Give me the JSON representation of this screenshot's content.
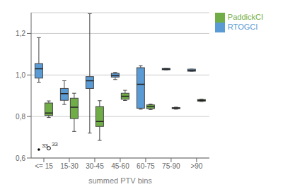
{
  "chart_data": {
    "type": "box",
    "xlabel": "summed PTV bins",
    "categories": [
      "<= 15",
      "15-30",
      "30-45",
      "45-60",
      "60-75",
      "75-90",
      ">90"
    ],
    "ylim": [
      0.6,
      1.3
    ],
    "yticks": [
      {
        "value": 0.6,
        "label": "0,6"
      },
      {
        "value": 0.8,
        "label": "0,8"
      },
      {
        "value": 1.0,
        "label": "1,0"
      },
      {
        "value": 1.2,
        "label": "1,2"
      }
    ],
    "grid": true,
    "legend": "right",
    "series": [
      {
        "name": "RTOGCI",
        "color": "#5b9bd5",
        "marker": "point",
        "boxes": [
          {
            "q1": 0.985,
            "median": 1.03,
            "q3": 1.055,
            "whislo": 0.965,
            "whishi": 1.18
          },
          {
            "q1": 0.878,
            "median": 0.91,
            "q3": 0.935,
            "whislo": 0.858,
            "whishi": 0.972
          },
          {
            "q1": 0.935,
            "median": 0.972,
            "q3": 0.992,
            "whislo": 0.72,
            "whishi": 1.295
          },
          {
            "q1": 0.99,
            "median": 0.998,
            "q3": 1.008,
            "whislo": 0.978,
            "whishi": 1.012
          },
          {
            "q1": 0.84,
            "median": 0.955,
            "q3": 1.035,
            "whislo": 0.835,
            "whishi": 1.045
          },
          {
            "q1": 1.025,
            "median": 1.028,
            "q3": 1.032,
            "whislo": 1.025,
            "whishi": 1.032
          },
          {
            "q1": 1.018,
            "median": 1.022,
            "q3": 1.028,
            "whislo": 1.018,
            "whishi": 1.028
          }
        ],
        "outliers": [
          {
            "category": "<= 15",
            "value": 0.641,
            "label": "33"
          }
        ]
      },
      {
        "name": "PaddickCI",
        "color": "#70ad47",
        "marker": "circle",
        "boxes": [
          {
            "q1": 0.805,
            "median": 0.817,
            "q3": 0.865,
            "whislo": 0.795,
            "whishi": 0.875
          },
          {
            "q1": 0.79,
            "median": 0.845,
            "q3": 0.888,
            "whislo": 0.728,
            "whishi": 0.912
          },
          {
            "q1": 0.752,
            "median": 0.776,
            "q3": 0.848,
            "whislo": 0.685,
            "whishi": 0.876
          },
          {
            "q1": 0.883,
            "median": 0.897,
            "q3": 0.912,
            "whislo": 0.877,
            "whishi": 0.926
          },
          {
            "q1": 0.838,
            "median": 0.847,
            "q3": 0.856,
            "whislo": 0.833,
            "whishi": 0.86
          },
          {
            "q1": 0.838,
            "median": 0.84,
            "q3": 0.843,
            "whislo": 0.835,
            "whishi": 0.845
          },
          {
            "q1": 0.874,
            "median": 0.878,
            "q3": 0.882,
            "whislo": 0.872,
            "whishi": 0.884
          }
        ],
        "outliers": [
          {
            "category": "<= 15",
            "value": 0.647,
            "label": "33"
          }
        ]
      }
    ]
  }
}
